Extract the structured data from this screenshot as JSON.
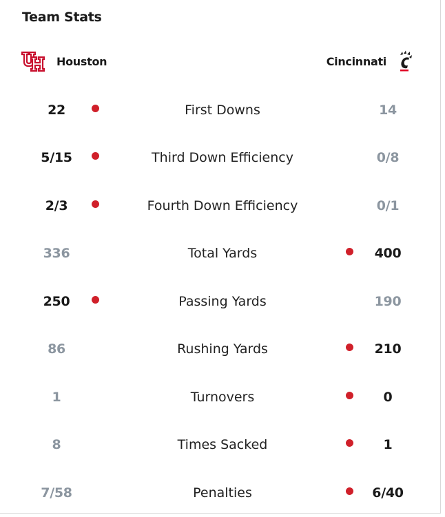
{
  "title": "Team Stats",
  "teams": {
    "home": {
      "name": "Houston",
      "logo_icon": "uh-logo-icon",
      "color": "#c8102e"
    },
    "away": {
      "name": "Cincinnati",
      "logo_icon": "bearcats-paw-logo-icon",
      "color": "#e00122"
    }
  },
  "colors": {
    "leader_dot": "#d0202a",
    "winning_value": "#1a1a1a",
    "losing_value": "#8c96a0"
  },
  "rows": [
    {
      "label": "First Downs",
      "home": "22",
      "away": "14",
      "leader": "home"
    },
    {
      "label": "Third Down Efficiency",
      "home": "5/15",
      "away": "0/8",
      "leader": "home"
    },
    {
      "label": "Fourth Down Efficiency",
      "home": "2/3",
      "away": "0/1",
      "leader": "home"
    },
    {
      "label": "Total Yards",
      "home": "336",
      "away": "400",
      "leader": "away"
    },
    {
      "label": "Passing Yards",
      "home": "250",
      "away": "190",
      "leader": "home"
    },
    {
      "label": "Rushing Yards",
      "home": "86",
      "away": "210",
      "leader": "away"
    },
    {
      "label": "Turnovers",
      "home": "1",
      "away": "0",
      "leader": "away"
    },
    {
      "label": "Times Sacked",
      "home": "8",
      "away": "1",
      "leader": "away"
    },
    {
      "label": "Penalties",
      "home": "7/58",
      "away": "6/40",
      "leader": "away"
    }
  ]
}
